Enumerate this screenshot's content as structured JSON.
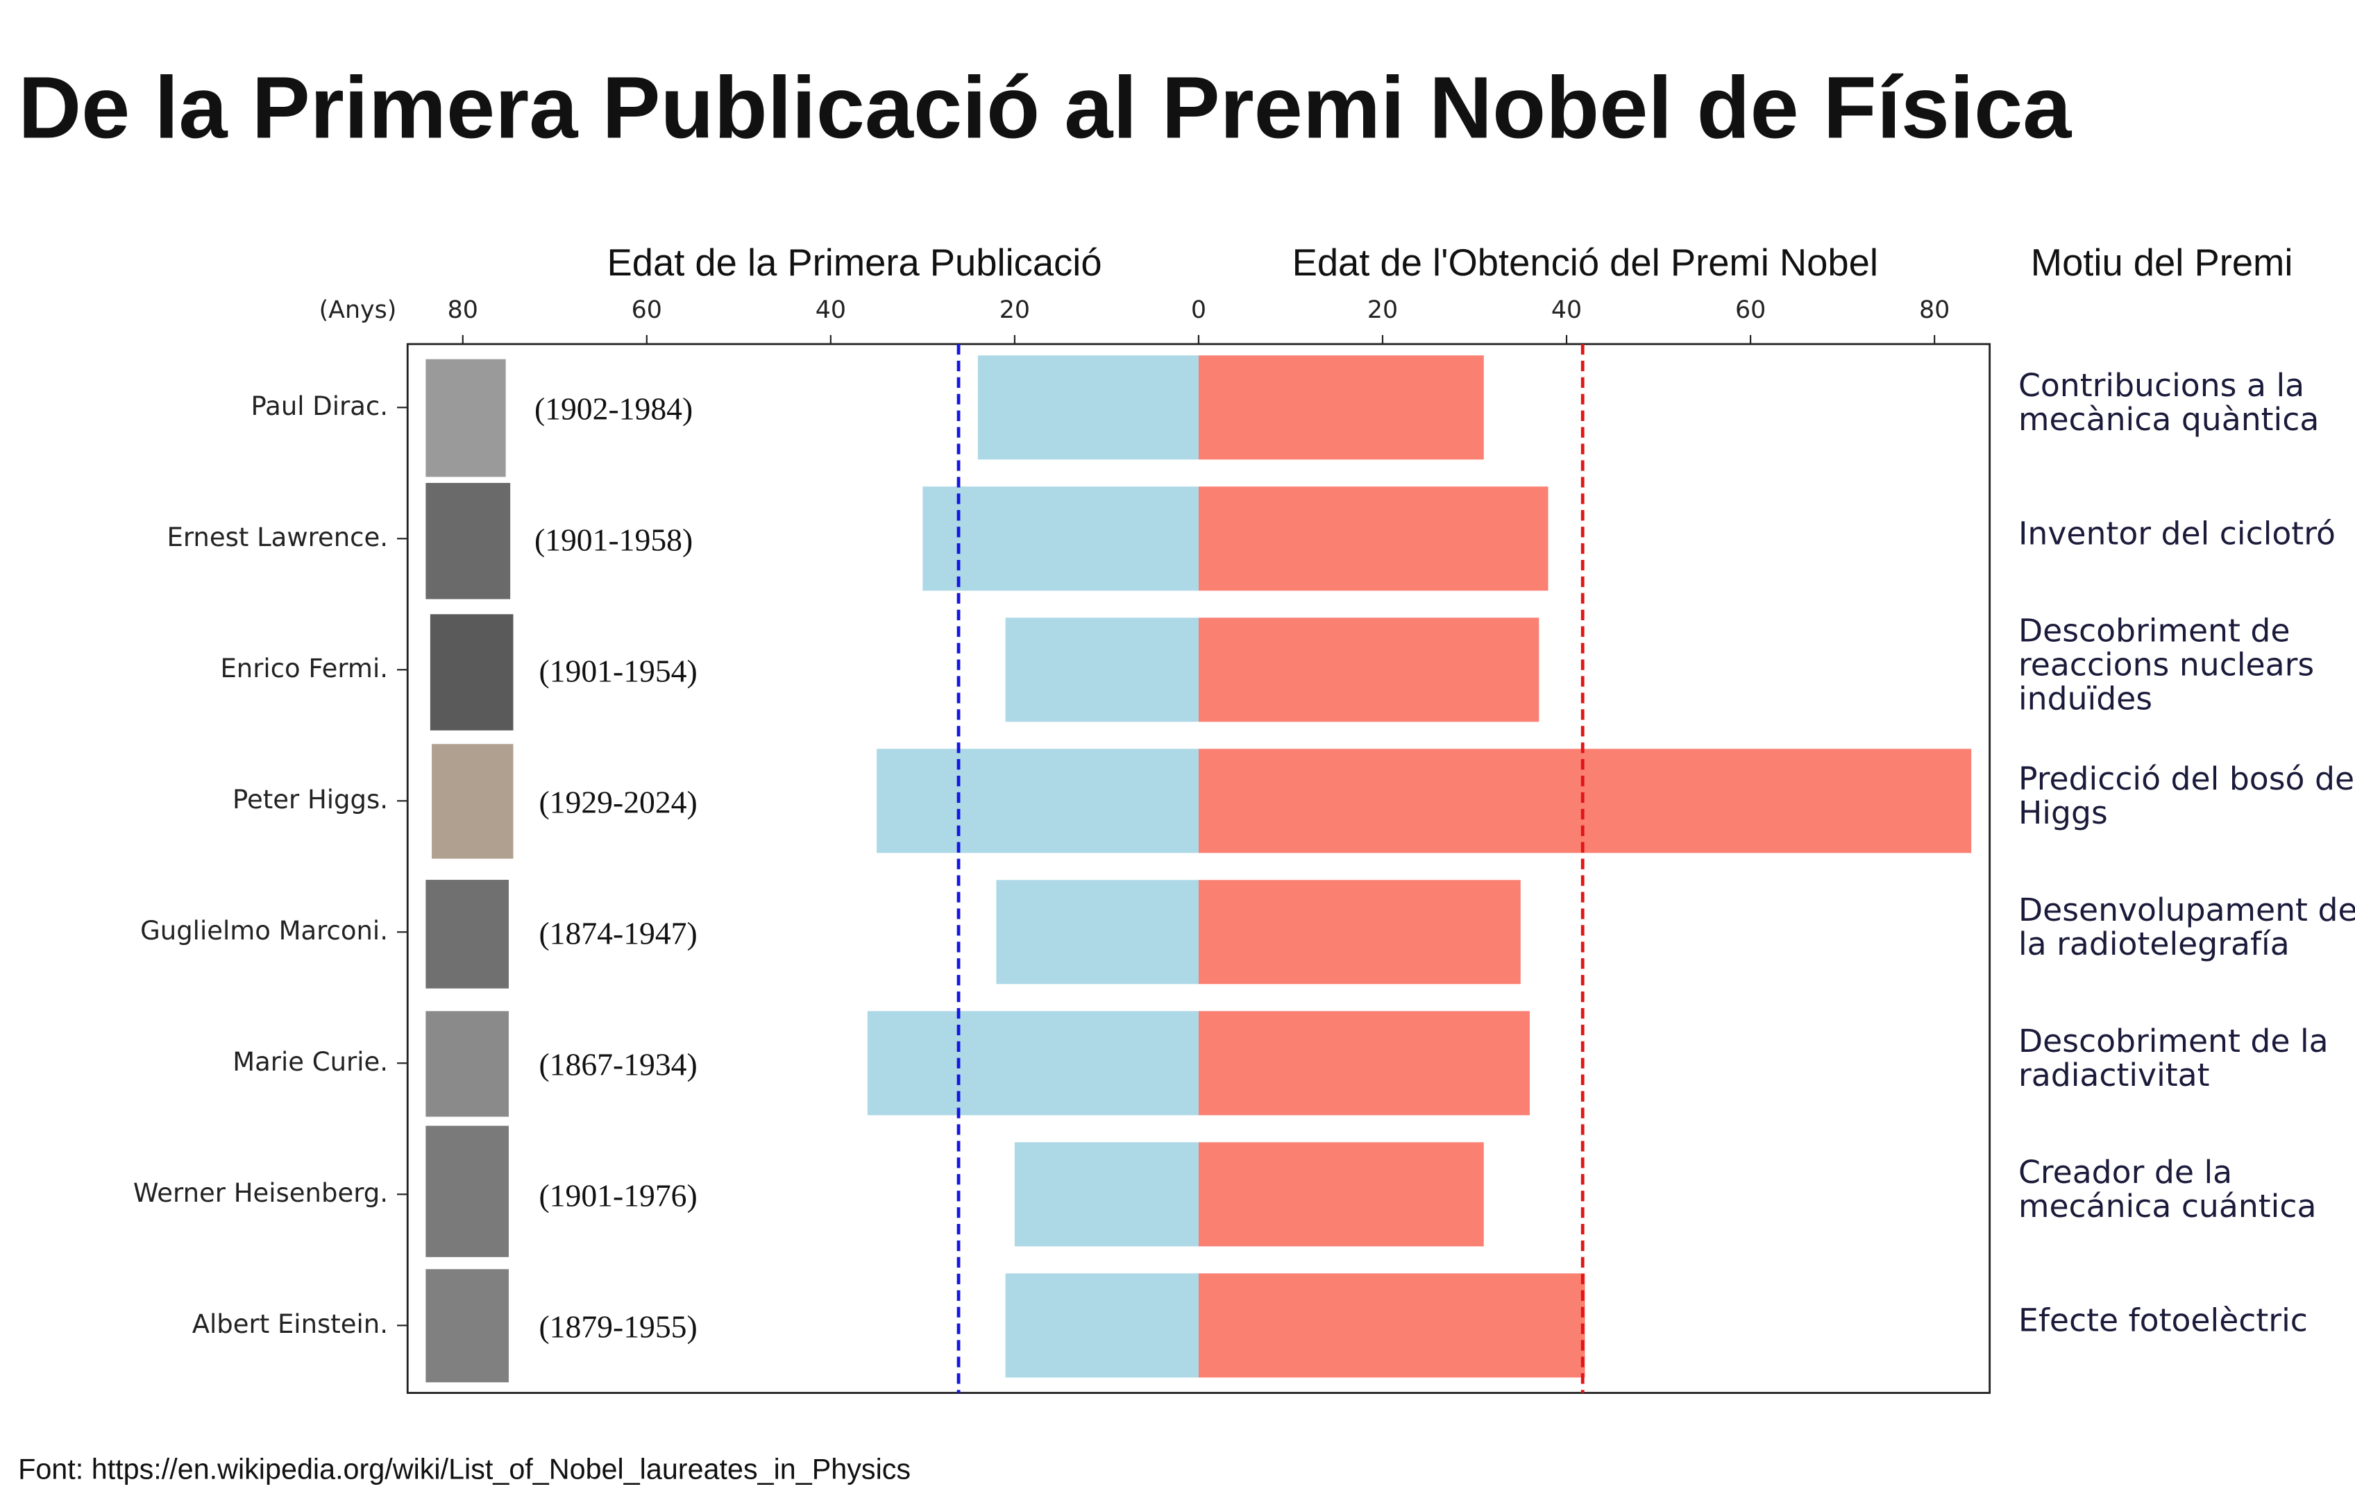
{
  "chart_data": {
    "type": "butterfly_bar",
    "title": "De la Primera Publicació al Premi Nobel de Física",
    "unit_label": "(Anys)",
    "reason_header": "Motiu del Premi",
    "source": "Font: https://en.wikipedia.org/wiki/List_of_Nobel_laureates_in_Physics",
    "categories": [
      "Paul Dirac.",
      "Ernest Lawrence.",
      "Enrico Fermi.",
      "Peter Higgs.",
      "Guglielmo Marconi.",
      "Marie Curie.",
      "Werner Heisenberg.",
      "Albert Einstein."
    ],
    "lifespans": [
      "(1902-1984)",
      "(1901-1958)",
      "(1901-1954)",
      "(1929-2024)",
      "(1874-1947)",
      "(1867-1934)",
      "(1901-1976)",
      "(1879-1955)"
    ],
    "reasons": [
      [
        "Contribucions a la",
        "mecànica quàntica"
      ],
      [
        "Inventor del ciclotró"
      ],
      [
        "Descobriment de",
        "reaccions nuclears",
        "induïdes"
      ],
      [
        "Predicció del bosó de",
        "Higgs"
      ],
      [
        "Desenvolupament de",
        "la radiotelegrafía"
      ],
      [
        "Descobriment de la",
        "radiactivitat"
      ],
      [
        "Creador de la",
        "mecánica cuántica"
      ],
      [
        "Efecte fotoelèctric"
      ]
    ],
    "series": [
      {
        "name": "Edat de la Primera Publicació",
        "color": "#add8e6",
        "values": [
          24,
          30,
          21,
          35,
          22,
          36,
          20,
          21
        ],
        "xlim": [
          86,
          0
        ],
        "xticks": [
          80,
          60,
          40,
          20,
          0
        ],
        "mean": 26.1,
        "mean_color": "#1515e0"
      },
      {
        "name": "Edat de l'Obtenció del Premi Nobel",
        "color": "#fa8072",
        "values": [
          31,
          38,
          37,
          84,
          35,
          36,
          31,
          42
        ],
        "xlim": [
          0,
          86
        ],
        "xticks": [
          0,
          20,
          40,
          60,
          80
        ],
        "mean": 41.75,
        "mean_color": "#e01515"
      }
    ]
  }
}
